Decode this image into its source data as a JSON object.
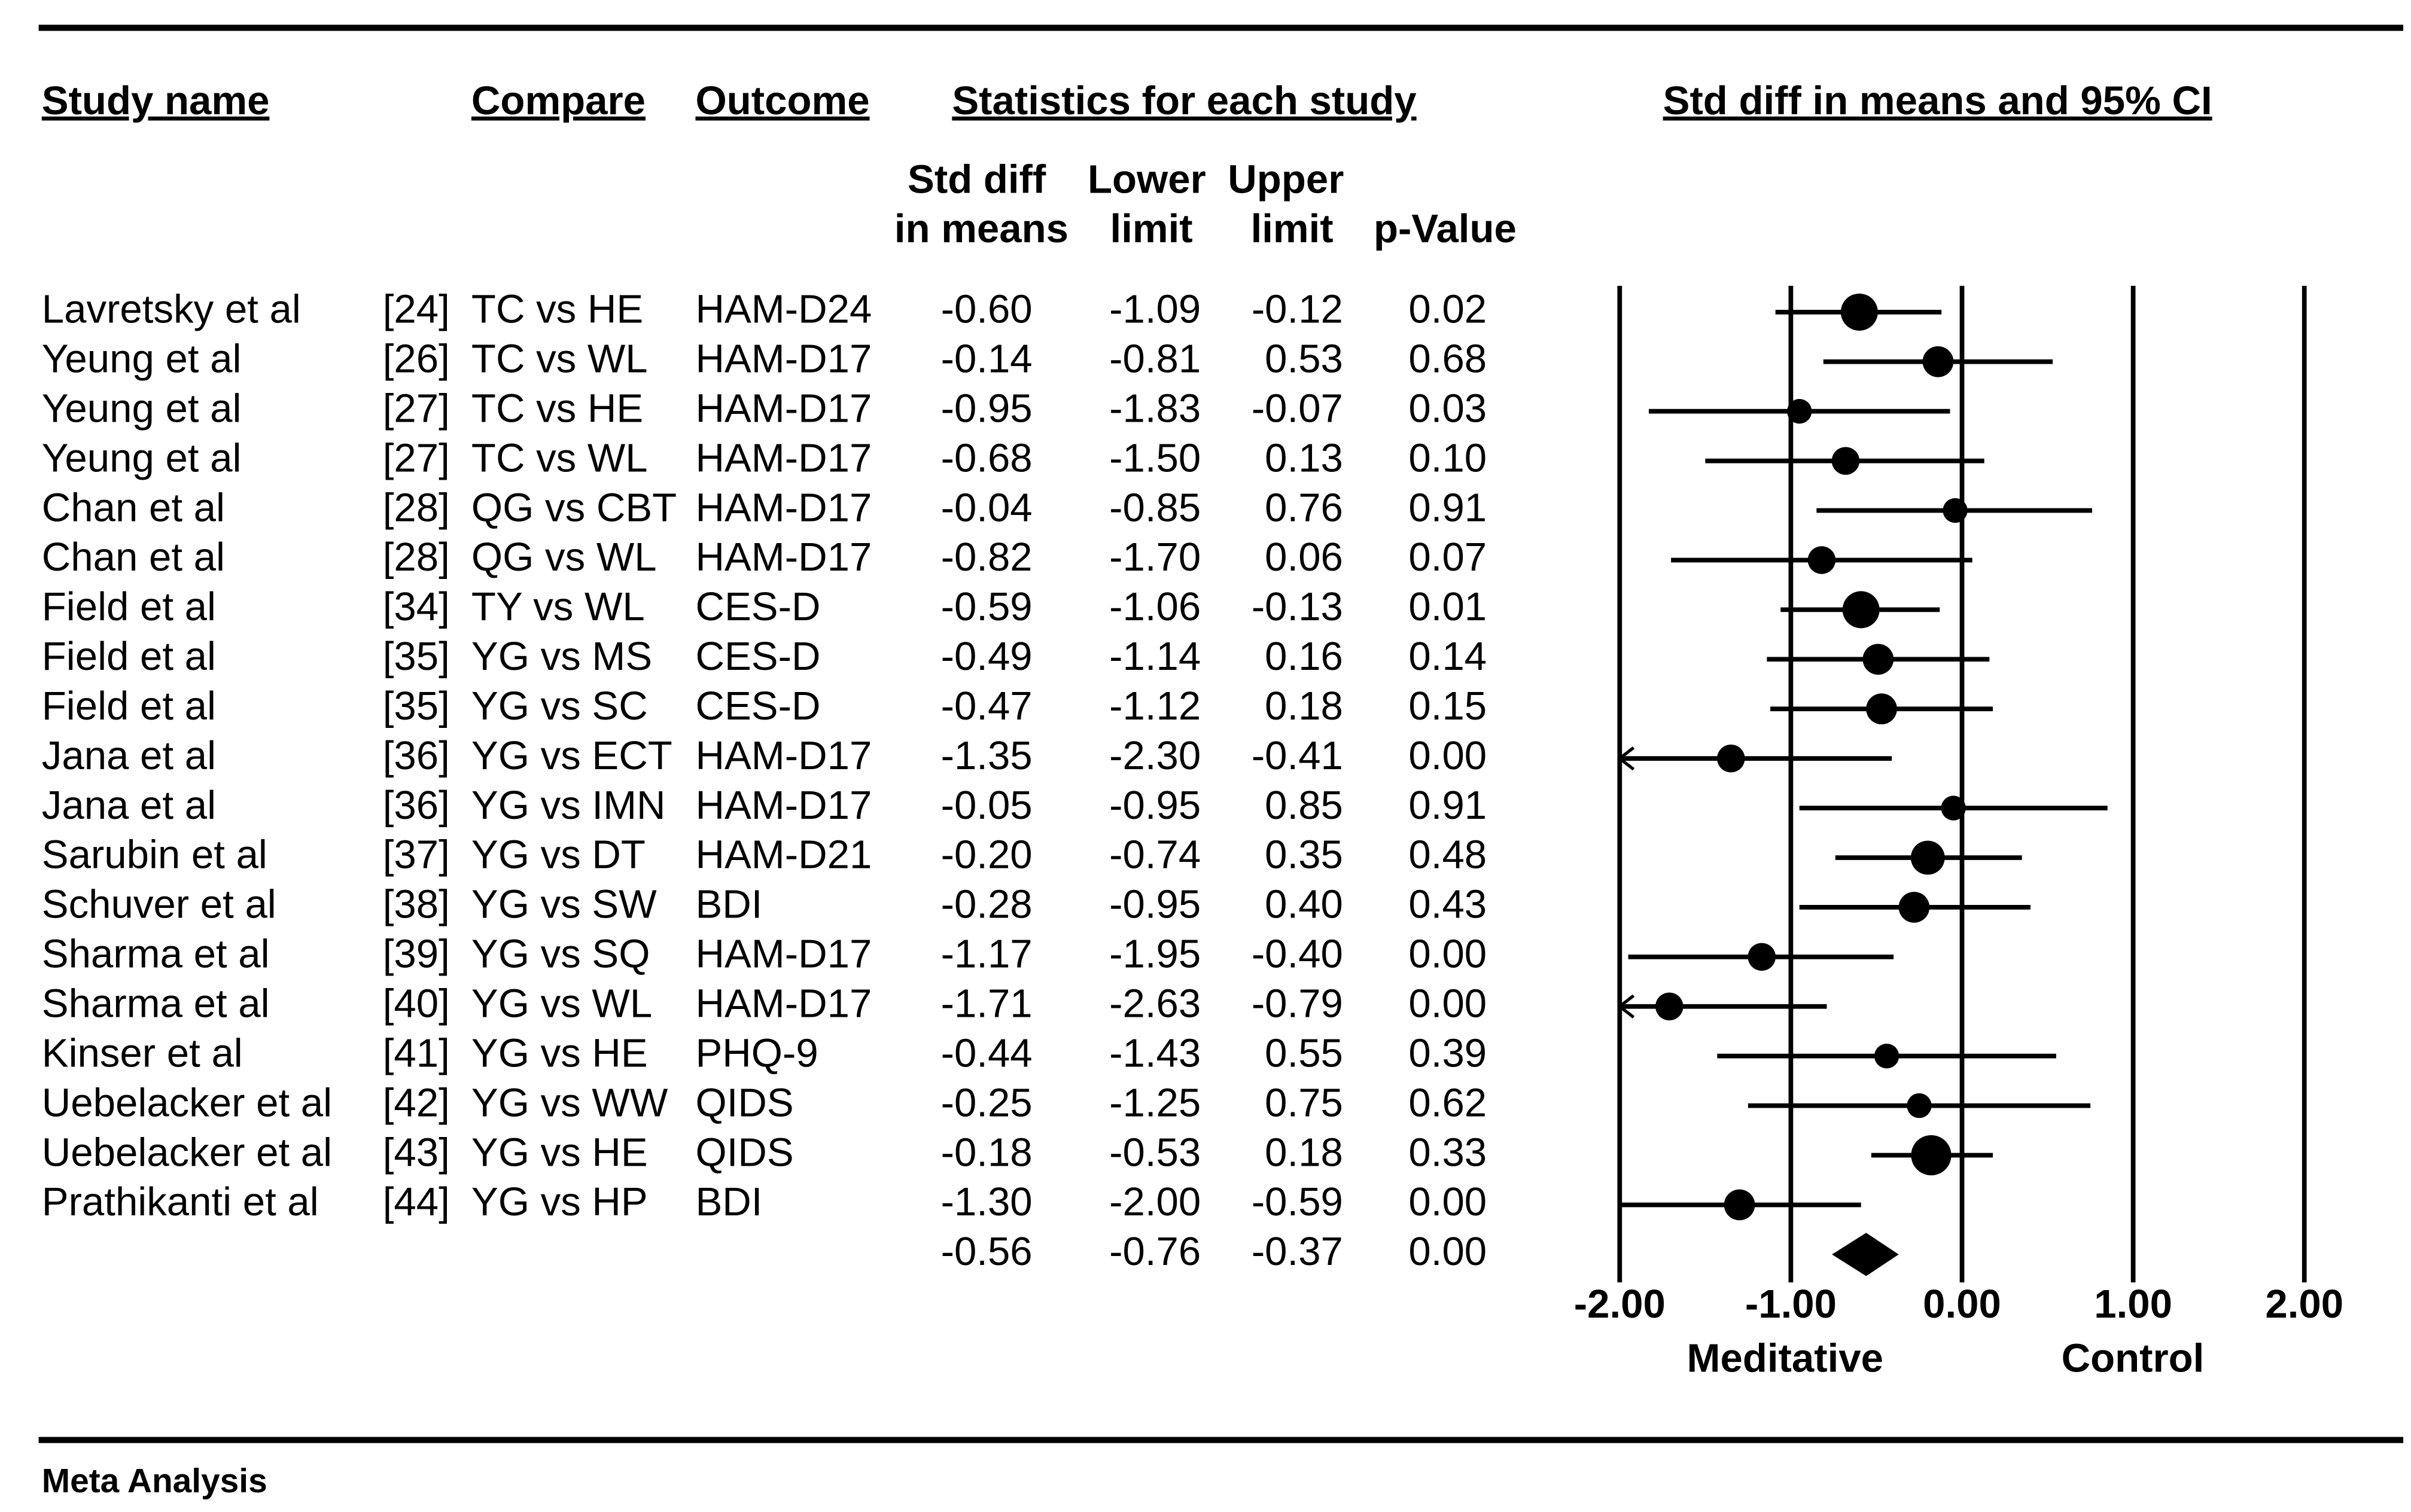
{
  "chart_data": {
    "type": "forest",
    "headers": {
      "study": "Study name",
      "compare": "Compare",
      "outcome": "Outcome",
      "stats": "Statistics for each study",
      "plot": "Std diff in means and 95% CI"
    },
    "subheaders": {
      "std_1": "Std diff",
      "std_2": "in means",
      "lower_1": "Lower",
      "lower_2": "limit",
      "upper_1": "Upper",
      "upper_2": "limit",
      "p": "p-Value"
    },
    "studies": [
      "Lavretsky et al",
      "Yeung et al",
      "Yeung et al",
      "Yeung et al",
      "Chan et al",
      "Chan et al",
      "Field et al",
      "Field et al",
      "Field et al",
      "Jana et al",
      "Jana et al",
      "Sarubin et al",
      "Schuver et al",
      "Sharma et al",
      "Sharma et al",
      "Kinser et al",
      "Uebelacker et al",
      "Uebelacker et al",
      "Prathikanti et al"
    ],
    "refs": [
      "[24]",
      "[26]",
      "[27]",
      "[27]",
      "[28]",
      "[28]",
      "[34]",
      "[35]",
      "[35]",
      "[36]",
      "[36]",
      "[37]",
      "[38]",
      "[39]",
      "[40]",
      "[41]",
      "[42]",
      "[43]",
      "[44]"
    ],
    "compare": [
      "TC vs HE",
      "TC vs WL",
      "TC vs HE",
      "TC vs WL",
      "QG vs CBT",
      "QG vs WL",
      "TY vs WL",
      "YG vs MS",
      "YG vs SC",
      "YG vs ECT",
      "YG vs IMN",
      "YG vs DT",
      "YG vs SW",
      "YG vs SQ",
      "YG vs WL",
      "YG vs HE",
      "YG vs WW",
      "YG vs HE",
      "YG vs HP"
    ],
    "outcome": [
      "HAM-D24",
      "HAM-D17",
      "HAM-D17",
      "HAM-D17",
      "HAM-D17",
      "HAM-D17",
      "CES-D",
      "CES-D",
      "CES-D",
      "HAM-D17",
      "HAM-D17",
      "HAM-D21",
      "BDI",
      "HAM-D17",
      "HAM-D17",
      "PHQ-9",
      "QIDS",
      "QIDS",
      "BDI"
    ],
    "values": [
      -0.6,
      -0.14,
      -0.95,
      -0.68,
      -0.04,
      -0.82,
      -0.59,
      -0.49,
      -0.47,
      -1.35,
      -0.05,
      -0.2,
      -0.28,
      -1.17,
      -1.71,
      -0.44,
      -0.25,
      -0.18,
      -1.3
    ],
    "value_labels": [
      "-0.60",
      "-0.14",
      "-0.95",
      "-0.68",
      "-0.04",
      "-0.82",
      "-0.59",
      "-0.49",
      "-0.47",
      "-1.35",
      "-0.05",
      "-0.20",
      "-0.28",
      "-1.17",
      "-1.71",
      "-0.44",
      "-0.25",
      "-0.18",
      "-1.30"
    ],
    "lower": [
      -1.09,
      -0.81,
      -1.83,
      -1.5,
      -0.85,
      -1.7,
      -1.06,
      -1.14,
      -1.12,
      -2.3,
      -0.95,
      -0.74,
      -0.95,
      -1.95,
      -2.63,
      -1.43,
      -1.25,
      -0.53,
      -2.0
    ],
    "lower_labels": [
      "-1.09",
      "-0.81",
      "-1.83",
      "-1.50",
      "-0.85",
      "-1.70",
      "-1.06",
      "-1.14",
      "-1.12",
      "-2.30",
      "-0.95",
      "-0.74",
      "-0.95",
      "-1.95",
      "-2.63",
      "-1.43",
      "-1.25",
      "-0.53",
      "-2.00"
    ],
    "upper": [
      -0.12,
      0.53,
      -0.07,
      0.13,
      0.76,
      0.06,
      -0.13,
      0.16,
      0.18,
      -0.41,
      0.85,
      0.35,
      0.4,
      -0.4,
      -0.79,
      0.55,
      0.75,
      0.18,
      -0.59
    ],
    "upper_labels": [
      "-0.12",
      "0.53",
      "-0.07",
      "0.13",
      "0.76",
      "0.06",
      "-0.13",
      "0.16",
      "0.18",
      "-0.41",
      "0.85",
      "0.35",
      "0.40",
      "-0.40",
      "-0.79",
      "0.55",
      "0.75",
      "0.18",
      "-0.59"
    ],
    "p_values": [
      "0.02",
      "0.68",
      "0.03",
      "0.10",
      "0.91",
      "0.07",
      "0.01",
      "0.14",
      "0.15",
      "0.00",
      "0.91",
      "0.48",
      "0.43",
      "0.00",
      "0.00",
      "0.39",
      "0.62",
      "0.33",
      "0.00"
    ],
    "weights": [
      12,
      10,
      8,
      9,
      8,
      9,
      12,
      10,
      10,
      9,
      8,
      11,
      10,
      9,
      9,
      8,
      8,
      13,
      10
    ],
    "summary": {
      "value": -0.56,
      "value_label": "-0.56",
      "lower": -0.76,
      "lower_label": "-0.76",
      "upper": -0.37,
      "upper_label": "-0.37",
      "p_value": "0.00"
    },
    "xlim": [
      -2,
      2
    ],
    "xticks": [
      {
        "value": -2,
        "label": "-2.00"
      },
      {
        "value": -1,
        "label": "-1.00"
      },
      {
        "value": 0,
        "label": "0.00"
      },
      {
        "value": 1,
        "label": "1.00"
      },
      {
        "value": 2,
        "label": "2.00"
      }
    ],
    "favours_left": "Meditative",
    "favours_right": "Control",
    "footer": "Meta Analysis",
    "color": "#000000"
  }
}
